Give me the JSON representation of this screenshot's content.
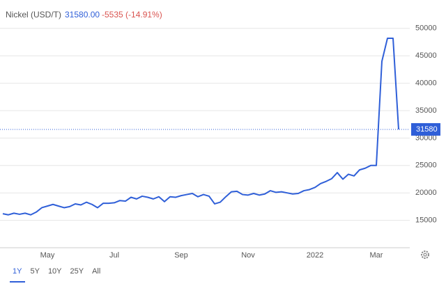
{
  "chart_data": {
    "type": "line",
    "title": "Nickel (USD/T)",
    "last_price": "31580.00",
    "change": "-5535 (-14.91%)",
    "categories": [
      null,
      null,
      null,
      null,
      null,
      null,
      null,
      null,
      "May",
      null,
      null,
      null,
      null,
      null,
      null,
      null,
      null,
      null,
      null,
      null,
      "Jul",
      null,
      null,
      null,
      null,
      null,
      null,
      null,
      null,
      null,
      null,
      null,
      "Sep",
      null,
      null,
      null,
      null,
      null,
      null,
      null,
      null,
      null,
      null,
      null,
      "Nov",
      null,
      null,
      null,
      null,
      null,
      null,
      null,
      null,
      null,
      null,
      null,
      "2022",
      null,
      null,
      null,
      null,
      null,
      null,
      null,
      null,
      null,
      null,
      "Mar",
      null,
      null,
      null,
      null
    ],
    "series": [
      {
        "name": "Nickel",
        "color": "#2f5fd8",
        "values": [
          16200,
          16000,
          16300,
          16100,
          16300,
          16000,
          16500,
          17300,
          17600,
          17900,
          17600,
          17300,
          17500,
          18000,
          17800,
          18300,
          17900,
          17300,
          18100,
          18100,
          18200,
          18600,
          18500,
          19200,
          18900,
          19400,
          19200,
          18900,
          19300,
          18400,
          19300,
          19200,
          19500,
          19700,
          19900,
          19300,
          19700,
          19400,
          18000,
          18300,
          19300,
          20200,
          20300,
          19700,
          19600,
          19900,
          19600,
          19800,
          20400,
          20100,
          20200,
          20000,
          19800,
          19900,
          20400,
          20600,
          21000,
          21700,
          22100,
          22600,
          23700,
          22500,
          23400,
          23100,
          24200,
          24500,
          25000,
          25000,
          44000,
          48200,
          48200,
          31580
        ]
      }
    ],
    "marker": {
      "value": 31580,
      "label": "31580"
    },
    "ylim": [
      10000,
      55000
    ],
    "yticks": [
      15000,
      20000,
      25000,
      30000,
      35000,
      40000,
      45000,
      50000
    ],
    "grid": true,
    "ranges": [
      "1Y",
      "5Y",
      "10Y",
      "25Y",
      "All"
    ],
    "active_range": "1Y"
  }
}
